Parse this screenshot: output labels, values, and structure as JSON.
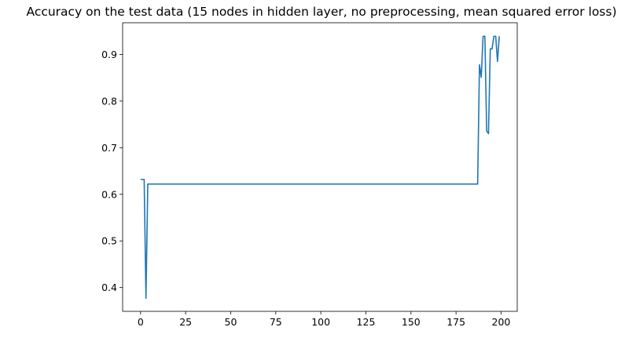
{
  "chart_data": {
    "type": "line",
    "title": "Accuracy on the test data (15 nodes in hidden layer, no preprocessing, mean squared error loss)",
    "xlabel": "",
    "ylabel": "",
    "xlim": [
      -9.95,
      208.95
    ],
    "ylim": [
      0.349,
      0.968
    ],
    "xticks": [
      0,
      25,
      50,
      75,
      100,
      125,
      150,
      175,
      200
    ],
    "yticks": [
      0.4,
      0.5,
      0.6,
      0.7,
      0.8,
      0.9
    ],
    "grid": false,
    "series": [
      {
        "color": "#1f77b4",
        "x": [
          0,
          1,
          2,
          3,
          4,
          5,
          186,
          187,
          188,
          189,
          190,
          191,
          192,
          193,
          194,
          195,
          196,
          197,
          198,
          199
        ],
        "y": [
          0.632,
          0.632,
          0.632,
          0.377,
          0.622,
          0.622,
          0.622,
          0.622,
          0.878,
          0.851,
          0.939,
          0.939,
          0.736,
          0.73,
          0.912,
          0.912,
          0.939,
          0.939,
          0.885,
          0.939
        ]
      }
    ]
  }
}
